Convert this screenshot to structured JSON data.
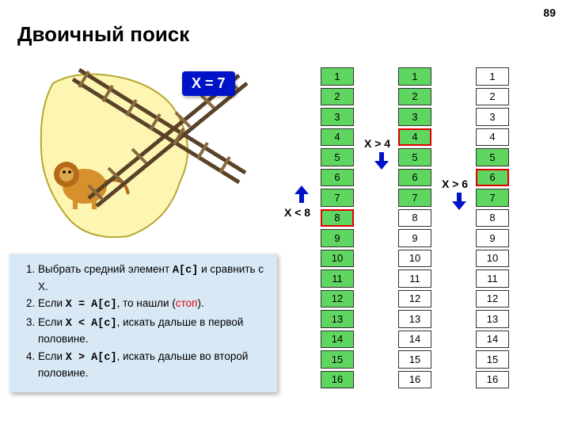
{
  "page_number": "89",
  "title": "Двоичный поиск",
  "badge": "X = 7",
  "steps": {
    "s1a": "Выбрать средний элемент ",
    "s1code": "A[c]",
    "s1b": " и сравнить с X.",
    "s2a": "Если ",
    "s2code": "X = A[c]",
    "s2b": ", то нашли (",
    "s2stop": "стоп",
    "s2c": ").",
    "s3a": "Если ",
    "s3code": "X < A[c]",
    "s3b": ", искать дальше в первой половине.",
    "s4a": "Если ",
    "s4code": "X > A[c]",
    "s4b": ", искать дальше во второй половине."
  },
  "columns": {
    "count": 16,
    "col1": {
      "active_end": 16,
      "highlight": 8
    },
    "col2": {
      "active_end": 7,
      "highlight": 4
    },
    "col3": {
      "active_end": 7,
      "active_start": 5,
      "highlight": 6
    }
  },
  "annotations": {
    "a1": "X < 8",
    "a2": "X > 4",
    "a3": "X > 6"
  },
  "colors": {
    "active": "#5fd65f",
    "highlight_border": "#e00000",
    "badge_bg": "#0013c8",
    "steps_bg": "#d9e8f5",
    "arrow": "#0013c8"
  }
}
